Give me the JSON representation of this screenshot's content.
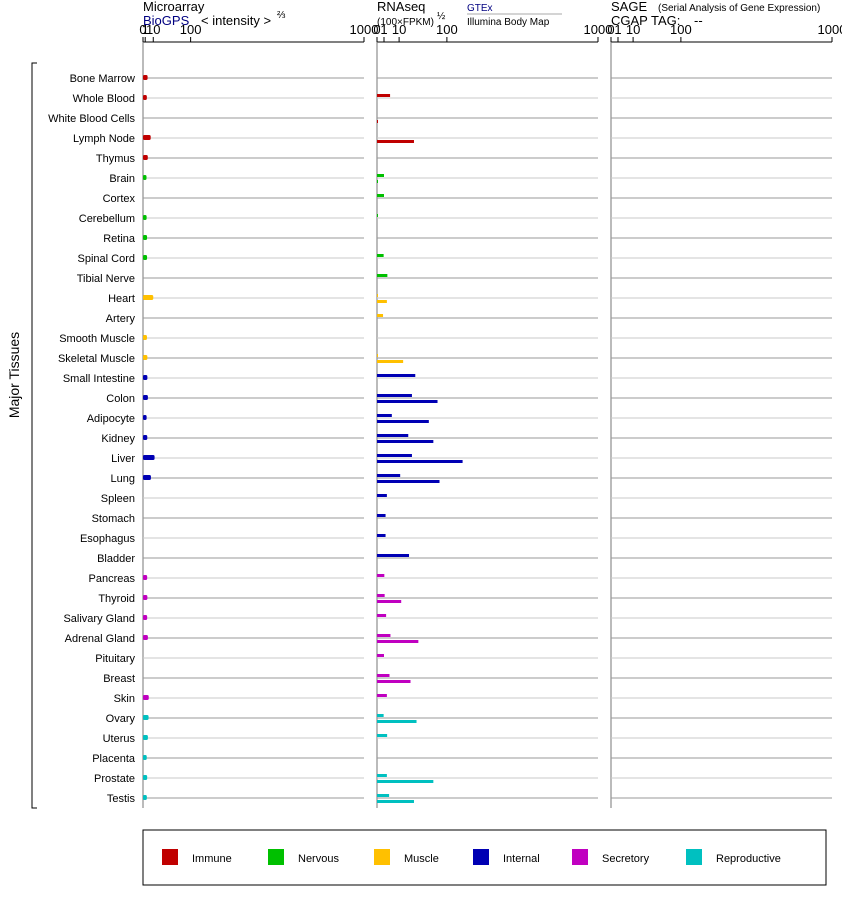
{
  "headers": {
    "microarray": {
      "title": "Microarray",
      "source": "BioGPS",
      "scale": "< intensity >",
      "scale_exp": "⅔"
    },
    "rnaseq": {
      "title": "RNAseq",
      "unit": "(100×FPKM)",
      "unit_exp": "½",
      "source1": "GTEx",
      "source2": "Illumina Body Map"
    },
    "sage": {
      "title": "SAGE",
      "subtitle": "(Serial Analysis of Gene Expression)",
      "tag_label": "CGAP TAG:",
      "tag_value": "--"
    }
  },
  "group_label": "Major Tissues",
  "legend": [
    {
      "label": "Immune",
      "color": "#c00000"
    },
    {
      "label": "Nervous",
      "color": "#00c000"
    },
    {
      "label": "Muscle",
      "color": "#ffc000"
    },
    {
      "label": "Internal",
      "color": "#0000b4"
    },
    {
      "label": "Secretory",
      "color": "#c000c0"
    },
    {
      "label": "Reproductive",
      "color": "#00c0c0"
    }
  ],
  "chart_data": {
    "type": "bar",
    "axis_ticks": [
      "0",
      "1",
      "10",
      "100",
      "1000"
    ],
    "axis_tick_values": [
      0,
      1,
      10,
      100,
      1000
    ],
    "panels": [
      "Microarray",
      "RNAseq",
      "SAGE"
    ],
    "tissues": [
      {
        "name": "Bone Marrow",
        "system": "Immune",
        "microarray": 3.0,
        "gtex": null,
        "ibm": null
      },
      {
        "name": "Whole Blood",
        "system": "Immune",
        "microarray": 2.3,
        "gtex": 3.5,
        "ibm": null
      },
      {
        "name": "White Blood Cells",
        "system": "Immune",
        "microarray": null,
        "gtex": null,
        "ibm": 0.002
      },
      {
        "name": "Lymph Node",
        "system": "Immune",
        "microarray": 6.5,
        "gtex": null,
        "ibm": 28
      },
      {
        "name": "Thymus",
        "system": "Immune",
        "microarray": 3.2,
        "gtex": null,
        "ibm": null
      },
      {
        "name": "Brain",
        "system": "Nervous",
        "microarray": 2.0,
        "gtex": 1.0,
        "ibm": 0.004
      },
      {
        "name": "Cortex",
        "system": "Nervous",
        "microarray": null,
        "gtex": 1.0,
        "ibm": null
      },
      {
        "name": "Cerebellum",
        "system": "Nervous",
        "microarray": 2.1,
        "gtex": 0.004,
        "ibm": null
      },
      {
        "name": "Retina",
        "system": "Nervous",
        "microarray": 2.5,
        "gtex": null,
        "ibm": null
      },
      {
        "name": "Spinal Cord",
        "system": "Nervous",
        "microarray": 2.5,
        "gtex": 0.9,
        "ibm": null
      },
      {
        "name": "Tibial Nerve",
        "system": "Nervous",
        "microarray": null,
        "gtex": 2.2,
        "ibm": null
      },
      {
        "name": "Heart",
        "system": "Muscle",
        "microarray": 10.0,
        "gtex": 0.004,
        "ibm": 2.0
      },
      {
        "name": "Artery",
        "system": "Muscle",
        "microarray": null,
        "gtex": 0.75,
        "ibm": null
      },
      {
        "name": "Smooth Muscle",
        "system": "Muscle",
        "microarray": 2.4,
        "gtex": null,
        "ibm": null
      },
      {
        "name": "Skeletal Muscle",
        "system": "Muscle",
        "microarray": 2.8,
        "gtex": 0.02,
        "ibm": 14
      },
      {
        "name": "Small Intestine",
        "system": "Internal",
        "microarray": 2.8,
        "gtex": 30,
        "ibm": null
      },
      {
        "name": "Colon",
        "system": "Internal",
        "microarray": 3.3,
        "gtex": 25,
        "ibm": 75
      },
      {
        "name": "Adipocyte",
        "system": "Internal",
        "microarray": 2.1,
        "gtex": 4.5,
        "ibm": 55
      },
      {
        "name": "Kidney",
        "system": "Internal",
        "microarray": 2.7,
        "gtex": 20,
        "ibm": 65
      },
      {
        "name": "Liver",
        "system": "Internal",
        "microarray": 12.0,
        "gtex": 25,
        "ibm": 150
      },
      {
        "name": "Lung",
        "system": "Internal",
        "microarray": 6.8,
        "gtex": 11,
        "ibm": 80
      },
      {
        "name": "Spleen",
        "system": "Internal",
        "microarray": null,
        "gtex": 2.0,
        "ibm": null
      },
      {
        "name": "Stomach",
        "system": "Internal",
        "microarray": null,
        "gtex": 1.5,
        "ibm": null
      },
      {
        "name": "Esophagus",
        "system": "Internal",
        "microarray": null,
        "gtex": 1.5,
        "ibm": null
      },
      {
        "name": "Bladder",
        "system": "Internal",
        "microarray": null,
        "gtex": 21,
        "ibm": null
      },
      {
        "name": "Pancreas",
        "system": "Secretory",
        "microarray": 2.6,
        "gtex": 1.1,
        "ibm": null
      },
      {
        "name": "Thyroid",
        "system": "Secretory",
        "microarray": 2.8,
        "gtex": 1.2,
        "ibm": 12
      },
      {
        "name": "Salivary Gland",
        "system": "Secretory",
        "microarray": 2.6,
        "gtex": 1.7,
        "ibm": null
      },
      {
        "name": "Adrenal Gland",
        "system": "Secretory",
        "microarray": 3.3,
        "gtex": 3.7,
        "ibm": 35
      },
      {
        "name": "Pituitary",
        "system": "Secretory",
        "microarray": null,
        "gtex": 1.0,
        "ibm": null
      },
      {
        "name": "Breast",
        "system": "Secretory",
        "microarray": null,
        "gtex": 3.2,
        "ibm": 23
      },
      {
        "name": "Skin",
        "system": "Secretory",
        "microarray": 4.2,
        "gtex": 2.0,
        "ibm": null
      },
      {
        "name": "Ovary",
        "system": "Reproductive",
        "microarray": 4.0,
        "gtex": 0.9,
        "ibm": 32
      },
      {
        "name": "Uterus",
        "system": "Reproductive",
        "microarray": 3.3,
        "gtex": 2.1,
        "ibm": null
      },
      {
        "name": "Placenta",
        "system": "Reproductive",
        "microarray": 2.2,
        "gtex": null,
        "ibm": null
      },
      {
        "name": "Prostate",
        "system": "Reproductive",
        "microarray": 2.6,
        "gtex": 2.0,
        "ibm": 65
      },
      {
        "name": "Testis",
        "system": "Reproductive",
        "microarray": 2.3,
        "gtex": 3.0,
        "ibm": 28
      }
    ]
  }
}
